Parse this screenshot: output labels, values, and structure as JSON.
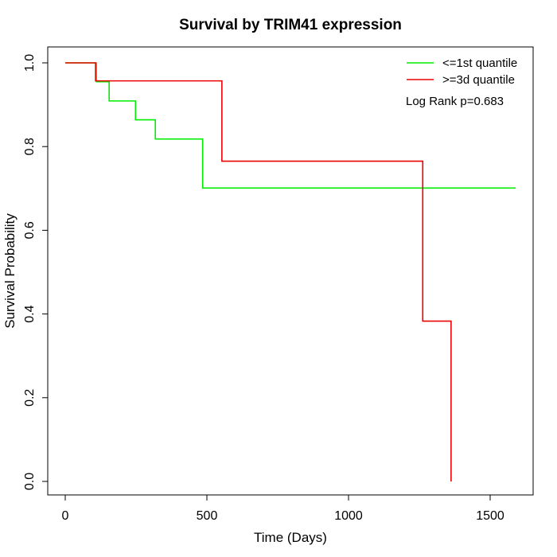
{
  "chart_data": {
    "type": "line",
    "step": true,
    "title": "Survival by TRIM41 expression",
    "xlabel": "Time (Days)",
    "ylabel": "Survival Probability",
    "xlim": [
      0,
      1600
    ],
    "ylim": [
      0,
      1.0
    ],
    "xticks": [
      0,
      500,
      1000,
      1500
    ],
    "xtick_labels": [
      "0",
      "500",
      "1000",
      "1500"
    ],
    "yticks": [
      0.0,
      0.2,
      0.4,
      0.6,
      0.8,
      1.0
    ],
    "ytick_labels": [
      "0.0",
      "0.2",
      "0.4",
      "0.6",
      "0.8",
      "1.0"
    ],
    "grid": false,
    "legend_position": "top-right",
    "annotation": "Log Rank p=0.683",
    "series": [
      {
        "name": "<=1st quantile",
        "color": "#00ee00",
        "x": [
          0,
          110,
          155,
          248,
          318,
          485,
          1590
        ],
        "y": [
          1.0,
          0.955,
          0.909,
          0.864,
          0.818,
          0.701,
          0.701
        ]
      },
      {
        "name": ">=3d quantile",
        "color": "#ee0000",
        "x": [
          0,
          107,
          553,
          1262,
          1362
        ],
        "y": [
          1.0,
          0.957,
          0.765,
          0.383,
          0.0
        ]
      }
    ]
  }
}
